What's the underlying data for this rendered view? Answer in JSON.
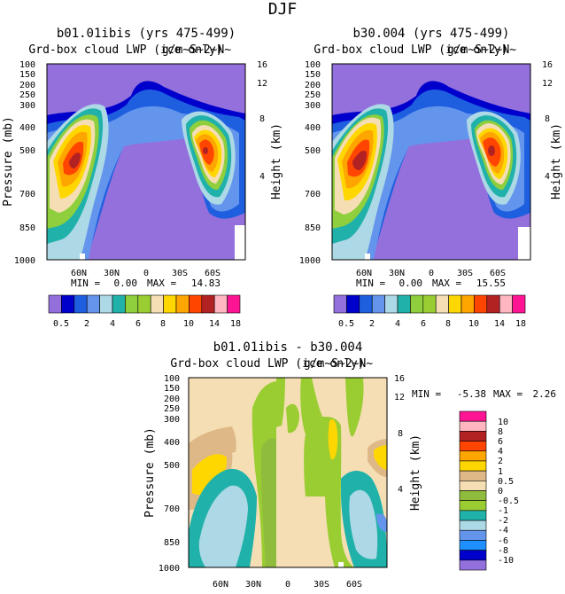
{
  "page_title": "DJF",
  "chart_data": [
    {
      "type": "heatmap",
      "panel": "top-left",
      "title": "b01.01ibis (yrs 475-499)",
      "subtitle": "Grd-box cloud LWP (ice only)",
      "units_overlay": "g/m~S~2~N~",
      "ylabel": "Pressure (mb)",
      "ylabel_right": "Height (km)",
      "y_ticks": [
        "100",
        "150",
        "200",
        "250",
        "300",
        "400",
        "500",
        "700",
        "850",
        "1000"
      ],
      "y_right_ticks": [
        "16",
        "12",
        "8",
        "4"
      ],
      "x_ticks": [
        "60N",
        "30N",
        "0",
        "30S",
        "60S"
      ],
      "stats": {
        "min_label": "MIN =",
        "min": "0.00",
        "max_label": "MAX =",
        "max": "14.83"
      },
      "colorbar_labels": [
        "0.5",
        "2",
        "4",
        "6",
        "8",
        "10",
        "14",
        "18"
      ],
      "peaks": [
        {
          "lat": "60N",
          "pressure": 540,
          "value": 14.8
        },
        {
          "lat": "60S",
          "pressure": 490,
          "value": 12.5
        }
      ]
    },
    {
      "type": "heatmap",
      "panel": "top-right",
      "title": "b30.004 (yrs 475-499)",
      "subtitle": "Grd-box cloud LWP (ice only)",
      "units_overlay": "g/m~S~2~N~",
      "ylabel": "Pressure (mb)",
      "ylabel_right": "Height (km)",
      "y_ticks": [
        "100",
        "150",
        "200",
        "250",
        "300",
        "400",
        "500",
        "700",
        "850",
        "1000"
      ],
      "y_right_ticks": [
        "16",
        "12",
        "8",
        "4"
      ],
      "x_ticks": [
        "60N",
        "30N",
        "0",
        "30S",
        "60S"
      ],
      "stats": {
        "min_label": "MIN =",
        "min": "0.00",
        "max_label": "MAX =",
        "max": "15.55"
      },
      "colorbar_labels": [
        "0.5",
        "2",
        "4",
        "6",
        "8",
        "10",
        "14",
        "18"
      ],
      "peaks": [
        {
          "lat": "60N",
          "pressure": 540,
          "value": 15.5
        },
        {
          "lat": "60S",
          "pressure": 490,
          "value": 13.5
        }
      ]
    },
    {
      "type": "heatmap",
      "panel": "bottom-difference",
      "title": "b01.01ibis - b30.004",
      "subtitle": "Grd-box cloud LWP (ice only)",
      "units_overlay": "g/m~S~2~N~",
      "ylabel": "Pressure (mb)",
      "ylabel_right": "Height (km)",
      "y_ticks": [
        "100",
        "150",
        "200",
        "250",
        "300",
        "400",
        "500",
        "700",
        "850",
        "1000"
      ],
      "y_right_ticks": [
        "16",
        "12",
        "8",
        "4"
      ],
      "x_ticks": [
        "60N",
        "30N",
        "0",
        "30S",
        "60S"
      ],
      "stats": {
        "min_label": "MIN =",
        "min": "-5.38",
        "max_label": "MAX =",
        "max": "2.26"
      },
      "colorbar_labels": [
        "10",
        "8",
        "6",
        "4",
        "2",
        "1",
        "0.5",
        "0",
        "-0.5",
        "-1",
        "-2",
        "-4",
        "-6",
        "-8",
        "-10"
      ]
    }
  ],
  "colors": {
    "abs_scale": [
      "#9370db",
      "#0000cd",
      "#1e5fe0",
      "#6495ed",
      "#add8e6",
      "#20b2aa",
      "#8fce3c",
      "#9acd32",
      "#f5deb3",
      "#ffd700",
      "#ffa500",
      "#ff4500",
      "#b22222",
      "#ffb6c1",
      "#ff1493"
    ],
    "diff_scale": [
      "#ff1493",
      "#ffb6c1",
      "#b22222",
      "#ff4500",
      "#ffa500",
      "#ffd700",
      "#deb887",
      "#f5deb3",
      "#8fbc3c",
      "#9acd32",
      "#20b2aa",
      "#add8e6",
      "#6495ed",
      "#1e90ff",
      "#0000cd",
      "#9370db"
    ]
  }
}
